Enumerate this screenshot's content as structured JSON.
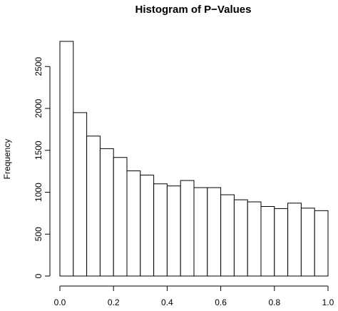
{
  "chart_data": {
    "type": "bar",
    "title": "Histogram of P−Values",
    "xlabel": "",
    "ylabel": "Frequency",
    "bin_edges": [
      0.0,
      0.05,
      0.1,
      0.15,
      0.2,
      0.25,
      0.3,
      0.35,
      0.4,
      0.45,
      0.5,
      0.55,
      0.6,
      0.65,
      0.7,
      0.75,
      0.8,
      0.85,
      0.9,
      0.95,
      1.0
    ],
    "values": [
      2800,
      1950,
      1670,
      1520,
      1415,
      1255,
      1205,
      1100,
      1075,
      1140,
      1055,
      1055,
      970,
      910,
      885,
      830,
      805,
      870,
      810,
      780
    ],
    "xlim": [
      0,
      1
    ],
    "ylim": [
      0,
      2800
    ],
    "x_ticks": [
      "0.0",
      "0.2",
      "0.4",
      "0.6",
      "0.8",
      "1.0"
    ],
    "y_ticks": [
      "0",
      "500",
      "1000",
      "1500",
      "2000",
      "2500"
    ],
    "grid": false,
    "legend": "none"
  }
}
